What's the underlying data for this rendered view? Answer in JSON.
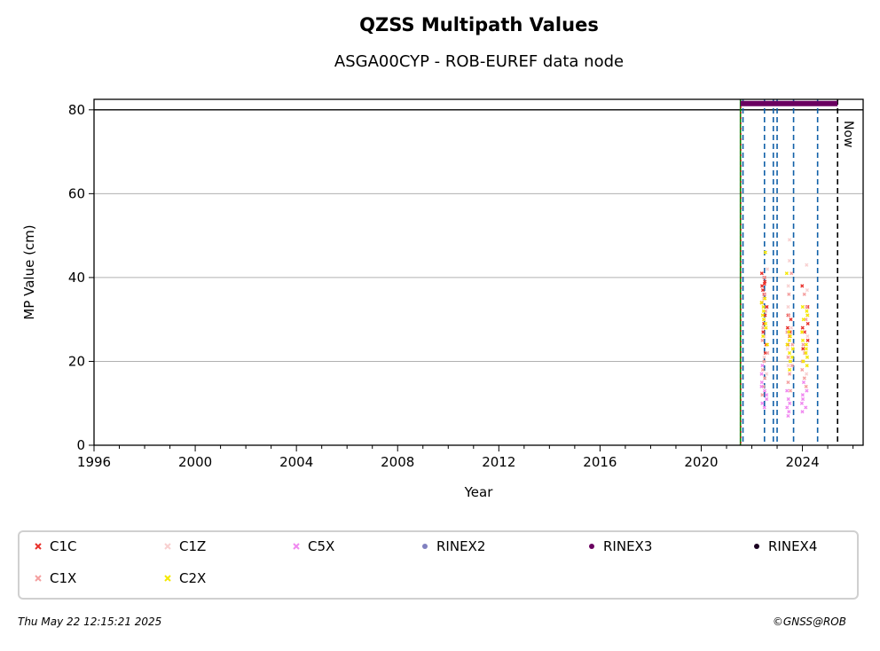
{
  "chart_data": {
    "type": "scatter",
    "title": "QZSS Multipath Values",
    "subtitle": "ASGA00CYP - ROB-EUREF data node",
    "xlabel": "Year",
    "ylabel": "MP Value (cm)",
    "xlim": [
      1996,
      2026.4
    ],
    "ylim": [
      0,
      82.5
    ],
    "xticks": [
      1996,
      2000,
      2004,
      2008,
      2012,
      2016,
      2020,
      2024
    ],
    "yticks": [
      0,
      20,
      40,
      60,
      80
    ],
    "grid": "horizontal",
    "reference_line_y": 80,
    "green_line_x": 2021.55,
    "event_lines_x": [
      2021.65,
      2022.5,
      2022.85,
      2023.0,
      2023.65,
      2024.6
    ],
    "now_line_x": 2025.39,
    "now_label": "Now",
    "rinex3_bar": {
      "x_start": 2021.55,
      "x_end": 2025.39,
      "y": 81.5
    },
    "legend_placement": "bottom",
    "series": [
      {
        "name": "C1C",
        "color": "#e8302a",
        "marker": "x",
        "clusters": [
          {
            "x": 2022.5,
            "y": [
              40,
              39,
              38,
              37,
              36,
              35,
              34,
              33,
              31,
              29,
              27,
              24,
              22,
              41,
              38.5
            ]
          },
          {
            "x": 2023.5,
            "y": [
              31,
              30,
              28,
              27,
              26,
              24
            ]
          },
          {
            "x": 2024.1,
            "y": [
              38,
              33,
              29,
              28,
              27,
              25,
              23
            ]
          }
        ]
      },
      {
        "name": "C1X",
        "color": "#f4a0a0",
        "marker": "x",
        "clusters": [
          {
            "x": 2022.5,
            "y": [
              40,
              36,
              32,
              28,
              25,
              22,
              20,
              18,
              16,
              14,
              12
            ]
          },
          {
            "x": 2023.5,
            "y": [
              41,
              36,
              31,
              27,
              24,
              21,
              19,
              17,
              15,
              13
            ]
          },
          {
            "x": 2024.1,
            "y": [
              36,
              33,
              30,
              27,
              24,
              22,
              20,
              18,
              16,
              14
            ]
          }
        ]
      },
      {
        "name": "C1Z",
        "color": "#f8d0d0",
        "marker": "x",
        "clusters": [
          {
            "x": 2022.5,
            "y": [
              46,
              42,
              35,
              30,
              26,
              21,
              17
            ]
          },
          {
            "x": 2023.5,
            "y": [
              49,
              44,
              38,
              33,
              28,
              23,
              19
            ]
          },
          {
            "x": 2024.1,
            "y": [
              43,
              37,
              31,
              26,
              21,
              17
            ]
          }
        ]
      },
      {
        "name": "C2X",
        "color": "#f5e800",
        "marker": "x",
        "clusters": [
          {
            "x": 2022.5,
            "y": [
              46,
              35,
              34,
              33,
              32,
              31,
              30,
              29,
              28,
              26,
              24
            ]
          },
          {
            "x": 2023.5,
            "y": [
              41,
              27,
              26,
              25,
              24,
              23,
              22,
              21,
              20,
              18
            ]
          },
          {
            "x": 2024.1,
            "y": [
              33,
              32,
              31,
              30,
              27,
              25,
              24,
              23,
              22,
              21,
              20,
              19
            ]
          }
        ]
      },
      {
        "name": "C5X",
        "color": "#f088f0",
        "marker": "x",
        "clusters": [
          {
            "x": 2022.5,
            "y": [
              19,
              17,
              15,
              14,
              13,
              12,
              11,
              10,
              9
            ]
          },
          {
            "x": 2023.5,
            "y": [
              13,
              11,
              10,
              9,
              8,
              7
            ]
          },
          {
            "x": 2024.1,
            "y": [
              15,
              13,
              12,
              11,
              10,
              9,
              8
            ]
          }
        ]
      },
      {
        "name": "RINEX2",
        "color": "#8080c0",
        "marker": "dot",
        "clusters": []
      },
      {
        "name": "RINEX3",
        "color": "#6a0060",
        "marker": "dot",
        "clusters": []
      },
      {
        "name": "RINEX4",
        "color": "#1a0020",
        "marker": "dot",
        "clusters": []
      }
    ]
  },
  "footer": {
    "timestamp": "Thu May 22 12:15:21 2025",
    "copyright": "©GNSS@ROB"
  }
}
